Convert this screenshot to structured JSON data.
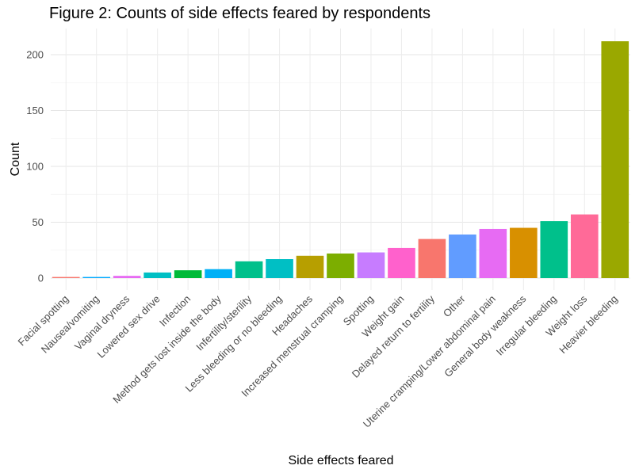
{
  "chart_data": {
    "type": "bar",
    "title": "Figure 2: Counts of side effects feared by respondents",
    "xlabel": "Side effects feared",
    "ylabel": "Count",
    "ylim": [
      0,
      222
    ],
    "yticks": [
      0,
      50,
      100,
      150,
      200
    ],
    "grid": true,
    "legend": "none",
    "categories": [
      "Facial spotting",
      "Nausea/vomiting",
      "Vaginal dryness",
      "Lowered sex drive",
      "Infection",
      "Method gets lost inside the body",
      "Infertility/sterility",
      "Less bleeding or no bleeding",
      "Headaches",
      "Increased menstrual cramping",
      "Spotting",
      "Weight gain",
      "Delayed return to fertility",
      "Other",
      "Uterine cramping/Lower abdominal pain",
      "General body weakness",
      "Irregular bleeding",
      "Weight loss",
      "Heavier bleeding"
    ],
    "values": [
      1,
      1,
      2,
      5,
      7,
      8,
      15,
      17,
      20,
      22,
      23,
      27,
      35,
      39,
      44,
      45,
      51,
      57,
      212
    ],
    "colors": [
      "#F8766D",
      "#00A9FF",
      "#E76BF3",
      "#00BFC4",
      "#00BA38",
      "#00B0F6",
      "#00C08B",
      "#00BFC4",
      "#B79F00",
      "#7CAE00",
      "#C77CFF",
      "#FF61CC",
      "#F8766D",
      "#619CFF",
      "#E76BF3",
      "#D89000",
      "#00C08B",
      "#FF6A98",
      "#9AA800"
    ]
  }
}
